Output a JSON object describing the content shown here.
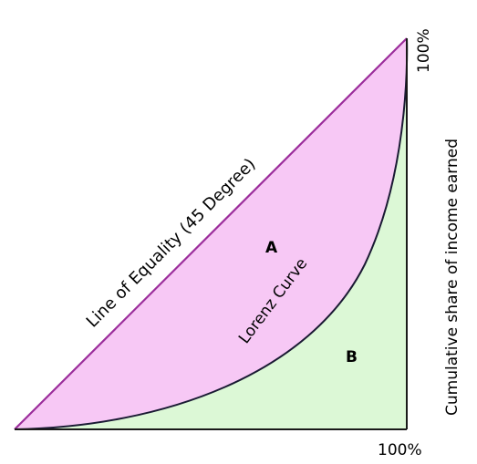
{
  "colors": {
    "area_a": "#f7c8f5",
    "area_b": "#dcf8d6",
    "equality_line": "#9b2d9b",
    "lorenz_curve": "#1a1a33",
    "axis": "#1a1a1a"
  },
  "labels": {
    "equality_line": "Line of Equality (45 Degree)",
    "lorenz_curve": "Lorenz Curve",
    "area_a": "A",
    "area_b": "B",
    "x_max": "100%",
    "y_max": "100%",
    "y_axis": "Cumulative share of income earned"
  }
}
